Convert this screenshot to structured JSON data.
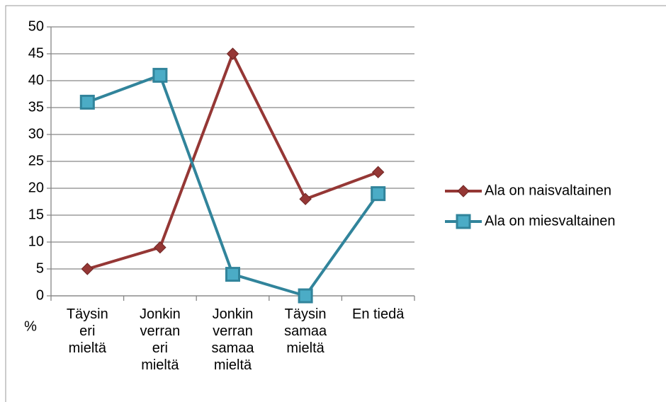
{
  "chart_data": {
    "type": "line",
    "y_label": "%",
    "categories": [
      "Täysin\neri\nmieltä",
      "Jonkin\nverran\neri\nmieltä",
      "Jonkin\nverran\nsamaa\nmieltä",
      "Täysin\nsamaa\nmieltä",
      "En tiedä"
    ],
    "series": [
      {
        "name": "Ala on naisvaltainen",
        "color": "#953735",
        "marker": "diamond",
        "values": [
          5,
          9,
          45,
          18,
          23
        ]
      },
      {
        "name": "Ala on miesvaltainen",
        "color": "#31849b",
        "marker": "square",
        "values": [
          36,
          41,
          4,
          0,
          19
        ]
      }
    ],
    "ylim": [
      0,
      50
    ],
    "yticks": [
      0,
      5,
      10,
      15,
      20,
      25,
      30,
      35,
      40,
      45,
      50
    ],
    "grid": true,
    "legend": "right"
  }
}
